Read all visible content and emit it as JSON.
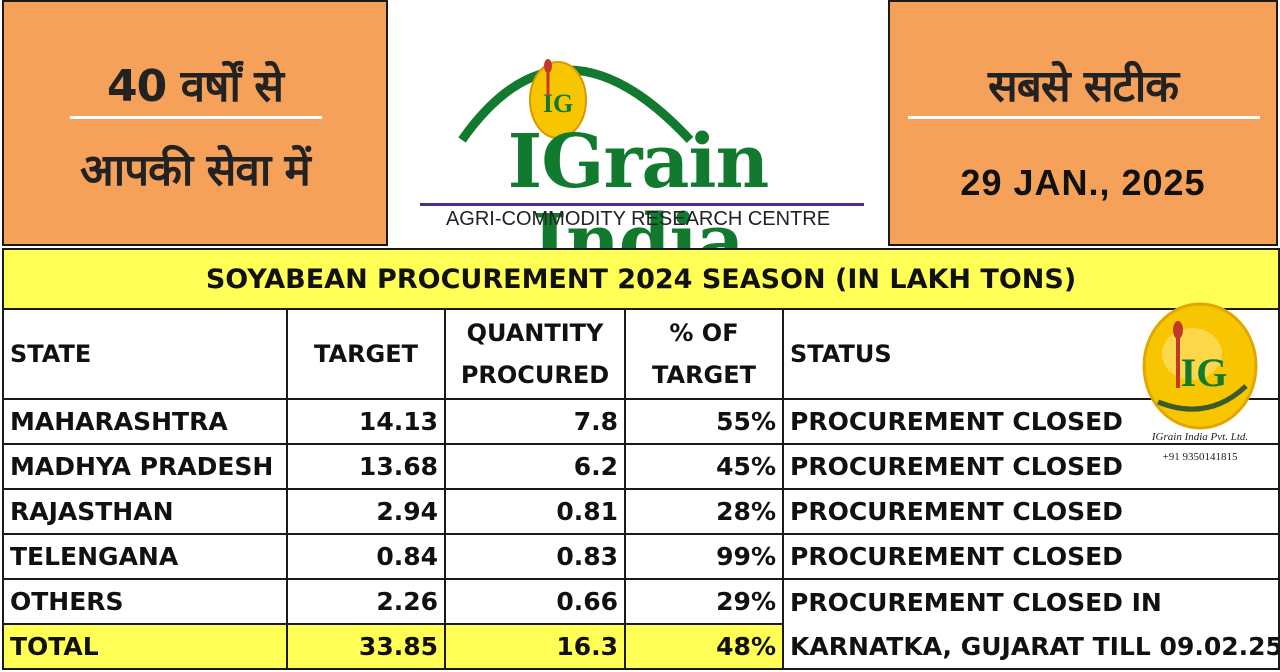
{
  "header": {
    "left_line1": "40 वर्षों से",
    "left_line2": "आपकी सेवा में",
    "right_line1": "सबसे सटीक",
    "date": "29 JAN., 2025",
    "brand_name": "IGrain India",
    "tagline": "AGRI-COMMODITY RESEARCH CENTRE",
    "logo_letters": "IG"
  },
  "table": {
    "title": "SOYABEAN PROCUREMENT 2024 SEASON (IN LAKH TONS)",
    "headers": {
      "state": "STATE",
      "target": "TARGET",
      "qty_line1": "QUANTITY",
      "qty_line2": "PROCURED",
      "pct_line1": "% OF",
      "pct_line2": "TARGET",
      "status": "STATUS"
    },
    "rows": [
      {
        "state": "MAHARASHTRA",
        "target": "14.13",
        "procured": "7.8",
        "percent": "55%",
        "status": "PROCUREMENT CLOSED"
      },
      {
        "state": "MADHYA PRADESH",
        "target": "13.68",
        "procured": "6.2",
        "percent": "45%",
        "status": "PROCUREMENT CLOSED"
      },
      {
        "state": "RAJASTHAN",
        "target": "2.94",
        "procured": "0.81",
        "percent": "28%",
        "status": "PROCUREMENT CLOSED"
      },
      {
        "state": "TELENGANA",
        "target": "0.84",
        "procured": "0.83",
        "percent": "99%",
        "status": "PROCUREMENT CLOSED"
      },
      {
        "state": "OTHERS",
        "target": "2.26",
        "procured": "0.66",
        "percent": "29%",
        "status": "PROCUREMENT CLOSED IN"
      }
    ],
    "total": {
      "state": "TOTAL",
      "target": "33.85",
      "procured": "16.3",
      "percent": "48%",
      "status": "KARNATKA, GUJARAT TILL 09.02.25"
    }
  },
  "watermark": {
    "letters": "IG",
    "company": "IGrain India Pvt. Ltd.",
    "phone": "+91 9350141815"
  },
  "colors": {
    "orange_panel": "#f5a15a",
    "yellow_highlight": "#ffff55",
    "brand_green": "#127a2e",
    "logo_gold": "#f7c600"
  }
}
